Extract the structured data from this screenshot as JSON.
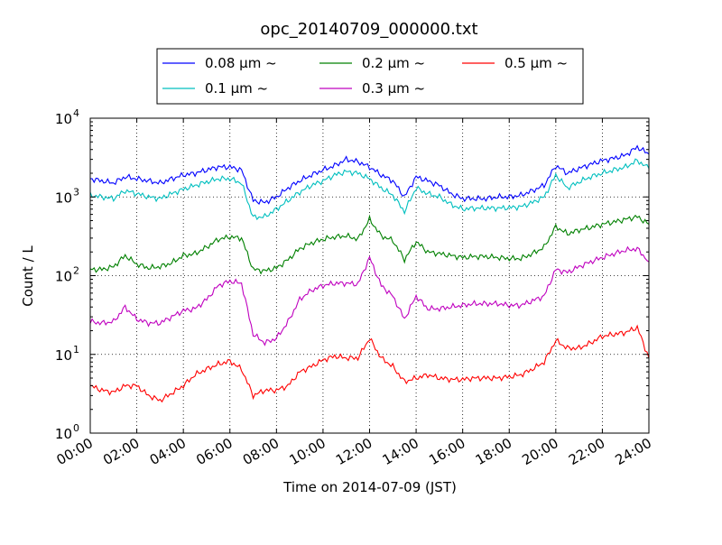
{
  "chart_data": {
    "type": "line",
    "title": "opc_20140709_000000.txt",
    "xlabel": "Time on 2014-07-09 (JST)",
    "ylabel": "Count / L",
    "yscale": "log",
    "ylim": [
      1,
      10000
    ],
    "xlim": [
      "00:00",
      "24:00"
    ],
    "grid": true,
    "legend_position": "top-center",
    "x_ticks": [
      "00:00",
      "02:00",
      "04:00",
      "06:00",
      "08:00",
      "10:00",
      "12:00",
      "14:00",
      "16:00",
      "18:00",
      "20:00",
      "22:00",
      "24:00"
    ],
    "y_ticks": [
      {
        "base": "10",
        "exp": "0"
      },
      {
        "base": "10",
        "exp": "1"
      },
      {
        "base": "10",
        "exp": "2"
      },
      {
        "base": "10",
        "exp": "3"
      },
      {
        "base": "10",
        "exp": "4"
      }
    ],
    "x_hours": [
      0,
      0.5,
      1,
      1.5,
      2,
      2.5,
      3,
      3.5,
      4,
      4.5,
      5,
      5.5,
      6,
      6.5,
      7,
      7.5,
      8,
      8.5,
      9,
      9.5,
      10,
      10.5,
      11,
      11.5,
      12,
      12.5,
      13,
      13.5,
      14,
      14.5,
      15,
      15.5,
      16,
      16.5,
      17,
      17.5,
      18,
      18.5,
      19,
      19.5,
      20,
      20.5,
      21,
      21.5,
      22,
      22.5,
      23,
      23.5,
      24
    ],
    "series": [
      {
        "name": "0.08 μm ~",
        "color": "#0000ff",
        "values": [
          1700,
          1600,
          1500,
          1800,
          1700,
          1600,
          1500,
          1700,
          1900,
          2000,
          2200,
          2400,
          2400,
          2200,
          900,
          850,
          1000,
          1300,
          1600,
          1900,
          2200,
          2500,
          3000,
          2800,
          2400,
          1900,
          1600,
          1000,
          1800,
          1600,
          1400,
          1100,
          950,
          950,
          950,
          1000,
          1000,
          1050,
          1200,
          1400,
          2500,
          2000,
          2300,
          2600,
          2900,
          3100,
          3400,
          4300,
          3500
        ]
      },
      {
        "name": "0.1 μm ~",
        "color": "#00bfbf",
        "values": [
          1050,
          1000,
          950,
          1200,
          1100,
          1000,
          950,
          1100,
          1250,
          1400,
          1550,
          1700,
          1700,
          1500,
          550,
          560,
          700,
          900,
          1150,
          1400,
          1600,
          1900,
          2100,
          2000,
          1700,
          1300,
          1050,
          650,
          1300,
          1100,
          1000,
          800,
          700,
          720,
          720,
          720,
          730,
          750,
          850,
          1000,
          1900,
          1300,
          1550,
          1800,
          2000,
          2200,
          2400,
          2900,
          2300
        ]
      },
      {
        "name": "0.2 μm ~",
        "color": "#008000",
        "values": [
          120,
          120,
          130,
          180,
          140,
          125,
          130,
          145,
          180,
          190,
          230,
          290,
          310,
          300,
          120,
          115,
          125,
          160,
          220,
          260,
          290,
          310,
          320,
          290,
          520,
          320,
          280,
          160,
          270,
          200,
          190,
          180,
          170,
          175,
          175,
          170,
          165,
          165,
          190,
          230,
          420,
          340,
          380,
          410,
          450,
          480,
          520,
          560,
          450
        ]
      },
      {
        "name": "0.3 μm ~",
        "color": "#bf00bf",
        "values": [
          26,
          25,
          26,
          40,
          28,
          25,
          25,
          30,
          36,
          38,
          50,
          75,
          85,
          80,
          18,
          14,
          16,
          26,
          50,
          65,
          75,
          80,
          80,
          78,
          170,
          75,
          55,
          28,
          55,
          38,
          38,
          40,
          42,
          44,
          44,
          44,
          42,
          42,
          48,
          55,
          120,
          110,
          130,
          150,
          170,
          190,
          210,
          220,
          150
        ]
      },
      {
        "name": "0.5 μm ~",
        "color": "#ff0000",
        "values": [
          4.0,
          3.5,
          3.3,
          4.0,
          4.0,
          3.0,
          2.6,
          3.2,
          4.0,
          5.5,
          6.5,
          7.5,
          8.2,
          6.5,
          3.0,
          3.5,
          3.5,
          4.0,
          6.0,
          7.0,
          8.5,
          9.5,
          9.0,
          9.0,
          16,
          9.0,
          7.0,
          4.5,
          5.0,
          5.5,
          5.0,
          4.8,
          4.8,
          5.0,
          5.0,
          5.0,
          5.2,
          5.5,
          6.5,
          8.0,
          15,
          12,
          12,
          14,
          17,
          18,
          19,
          22,
          9
        ]
      }
    ]
  }
}
